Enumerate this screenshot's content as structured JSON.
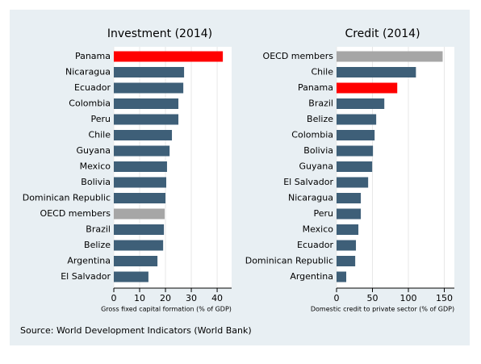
{
  "chart_data": [
    {
      "type": "barh",
      "title": "Investment (2014)",
      "xlabel": "Gross fixed capital formation (% of GDP)",
      "categories": [
        "Panama",
        "Nicaragua",
        "Ecuador",
        "Colombia",
        "Peru",
        "Chile",
        "Guyana",
        "Mexico",
        "Bolivia",
        "Dominican Republic",
        "OECD members",
        "Brazil",
        "Belize",
        "Argentina",
        "El Salvador"
      ],
      "values": [
        42.2,
        27.2,
        26.9,
        25,
        25,
        22.5,
        21.6,
        20.6,
        20.3,
        20,
        19.7,
        19.4,
        19.1,
        16.9,
        13.4
      ],
      "colors": [
        "#ff0000",
        "#3e5f78",
        "#3e5f78",
        "#3e5f78",
        "#3e5f78",
        "#3e5f78",
        "#3e5f78",
        "#3e5f78",
        "#3e5f78",
        "#3e5f78",
        "#a6a6a6",
        "#3e5f78",
        "#3e5f78",
        "#3e5f78",
        "#3e5f78"
      ],
      "xlim": [
        0,
        45.6
      ],
      "xticks": [
        0,
        10,
        20,
        30,
        40
      ],
      "grid": true
    },
    {
      "type": "barh",
      "title": "Credit (2014)",
      "xlabel": "Domestic credit to private sector (% of GDP)",
      "categories": [
        "OECD members",
        "Chile",
        "Panama",
        "Brazil",
        "Belize",
        "Colombia",
        "Bolivia",
        "Guyana",
        "El Salvador",
        "Nicaragua",
        "Peru",
        "Mexico",
        "Ecuador",
        "Dominican Republic",
        "Argentina"
      ],
      "values": [
        147.7,
        110.5,
        84.5,
        66.5,
        55.2,
        53,
        50.7,
        49.6,
        44,
        33.8,
        33.8,
        30.4,
        27,
        26,
        13.5
      ],
      "colors": [
        "#a6a6a6",
        "#3e5f78",
        "#ff0000",
        "#3e5f78",
        "#3e5f78",
        "#3e5f78",
        "#3e5f78",
        "#3e5f78",
        "#3e5f78",
        "#3e5f78",
        "#3e5f78",
        "#3e5f78",
        "#3e5f78",
        "#3e5f78",
        "#3e5f78"
      ],
      "xlim": [
        0,
        164
      ],
      "xticks": [
        0,
        50,
        100,
        150
      ],
      "grid": true
    }
  ],
  "source": "Source: World Development Indicators (World Bank)"
}
